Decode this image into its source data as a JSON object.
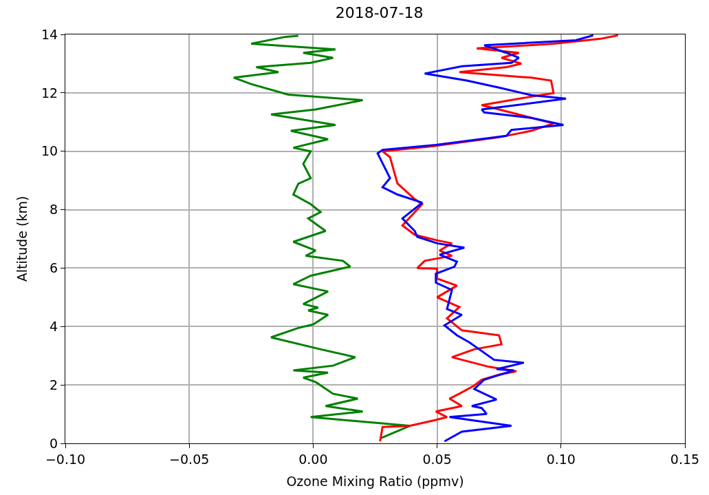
{
  "chart_data": {
    "type": "line",
    "title": "2018-07-18",
    "xlabel": "Ozone Mixing Ratio (ppmv)",
    "ylabel": "Altitude (km)",
    "xlim": [
      -0.1,
      0.15
    ],
    "xticks": [
      {
        "value": -0.1,
        "label": "−0.10"
      },
      {
        "value": -0.05,
        "label": "−0.05"
      },
      {
        "value": 0,
        "label": "0.00"
      },
      {
        "value": 0.05,
        "label": "0.05"
      },
      {
        "value": 0.1,
        "label": "0.10"
      },
      {
        "value": 0.15,
        "label": "0.15"
      }
    ],
    "ylim": [
      0,
      14
    ],
    "yticks": [
      0,
      2,
      4,
      6,
      8,
      10,
      12,
      14
    ],
    "grid": true,
    "line_style": "solid",
    "marker": "none",
    "series": [
      {
        "color": "#008000",
        "x": [
          0.027,
          0.039,
          -0.001,
          0.02,
          0.005,
          0.018,
          0.008,
          0.001,
          -0.004,
          0.006,
          -0.008,
          0.008,
          0.017,
          0.003,
          -0.017,
          -0.006,
          0.0,
          0.006,
          -0.002,
          0.002,
          -0.004,
          0.006,
          -0.008,
          -0.001,
          0.015,
          0.012,
          -0.003,
          0.001,
          -0.008,
          0.005,
          -0.002,
          0.003,
          -0.001,
          -0.008,
          -0.006,
          -0.001,
          -0.004,
          -0.001,
          -0.008,
          0.006,
          -0.009,
          0.009,
          -0.017,
          0.001,
          0.02,
          -0.01,
          -0.025,
          -0.032,
          -0.014,
          -0.023,
          -0.001,
          0.008,
          -0.004,
          0.009,
          -0.025,
          -0.011,
          -0.006
        ],
        "values": [
          0.17,
          0.6,
          0.9,
          1.09,
          1.28,
          1.53,
          1.7,
          2.1,
          2.25,
          2.42,
          2.5,
          2.66,
          2.95,
          3.22,
          3.63,
          3.95,
          4.07,
          4.4,
          4.55,
          4.65,
          4.77,
          5.2,
          5.45,
          5.74,
          6.05,
          6.25,
          6.42,
          6.6,
          6.9,
          7.27,
          7.7,
          7.92,
          8.19,
          8.52,
          8.89,
          9.08,
          9.57,
          10.0,
          10.12,
          10.41,
          10.7,
          10.9,
          11.26,
          11.43,
          11.75,
          11.94,
          12.3,
          12.52,
          12.71,
          12.88,
          13.03,
          13.2,
          13.37,
          13.49,
          13.68,
          13.92,
          13.95
        ]
      },
      {
        "color": "#ff0000",
        "x": [
          0.027,
          0.028,
          0.039,
          0.0495,
          0.054,
          0.0495,
          0.06,
          0.055,
          0.059,
          0.065,
          0.068,
          0.075,
          0.082,
          0.071,
          0.056,
          0.065,
          0.076,
          0.075,
          0.06,
          0.054,
          0.059,
          0.05,
          0.058,
          0.05,
          0.05,
          0.042,
          0.045,
          0.056,
          0.051,
          0.056,
          0.05,
          0.041,
          0.036,
          0.044,
          0.041,
          0.034,
          0.031,
          0.028,
          0.048,
          0.075,
          0.088,
          0.097,
          0.075,
          0.068,
          0.088,
          0.097,
          0.096,
          0.088,
          0.059,
          0.078,
          0.084,
          0.076,
          0.083,
          0.066,
          0.097,
          0.116,
          0.123
        ],
        "values": [
          0.07,
          0.56,
          0.6,
          0.8,
          0.9,
          1.09,
          1.28,
          1.53,
          1.7,
          1.98,
          2.18,
          2.35,
          2.47,
          2.62,
          2.95,
          3.22,
          3.39,
          3.7,
          3.87,
          4.28,
          4.67,
          5.0,
          5.4,
          5.64,
          5.98,
          6.0,
          6.25,
          6.42,
          6.6,
          6.85,
          6.95,
          7.14,
          7.46,
          8.19,
          8.36,
          8.9,
          9.8,
          10.0,
          10.17,
          10.48,
          10.7,
          10.95,
          11.43,
          11.58,
          11.87,
          11.99,
          12.42,
          12.52,
          12.71,
          12.88,
          13.0,
          13.2,
          13.37,
          13.52,
          13.68,
          13.85,
          13.97
        ]
      },
      {
        "color": "#0000ff",
        "x": [
          0.053,
          0.06,
          0.08,
          0.055,
          0.07,
          0.068,
          0.064,
          0.074,
          0.065,
          0.069,
          0.081,
          0.074,
          0.085,
          0.073,
          0.067,
          0.063,
          0.058,
          0.053,
          0.06,
          0.054,
          0.056,
          0.0495,
          0.0495,
          0.057,
          0.058,
          0.051,
          0.061,
          0.05,
          0.042,
          0.041,
          0.036,
          0.044,
          0.034,
          0.028,
          0.031,
          0.026,
          0.028,
          0.0495,
          0.078,
          0.08,
          0.101,
          0.088,
          0.069,
          0.068,
          0.102,
          0.088,
          0.075,
          0.062,
          0.045,
          0.06,
          0.08,
          0.083,
          0.078,
          0.069,
          0.106,
          0.113
        ],
        "values": [
          0.07,
          0.4,
          0.6,
          0.9,
          1.01,
          1.21,
          1.28,
          1.5,
          1.86,
          2.18,
          2.5,
          2.54,
          2.76,
          2.86,
          3.22,
          3.46,
          3.7,
          4.04,
          4.4,
          4.6,
          5.25,
          5.5,
          5.81,
          6.05,
          6.22,
          6.46,
          6.7,
          6.85,
          7.07,
          7.27,
          7.7,
          8.24,
          8.52,
          8.77,
          9.08,
          9.93,
          10.05,
          10.22,
          10.53,
          10.73,
          10.9,
          11.14,
          11.33,
          11.43,
          11.8,
          11.92,
          12.18,
          12.42,
          12.66,
          12.91,
          13.03,
          13.2,
          13.37,
          13.63,
          13.8,
          13.97
        ]
      }
    ]
  }
}
